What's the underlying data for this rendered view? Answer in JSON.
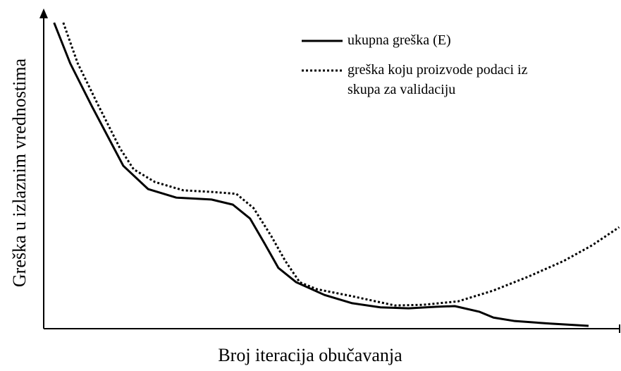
{
  "chart_data": {
    "type": "line",
    "y_label": "Greška u izlaznim vrednostima",
    "x_label": "Broj iteracija obučavanja",
    "xlim": [
      0,
      100
    ],
    "ylim": [
      0,
      100
    ],
    "series": [
      {
        "name": "ukupna greška (E)",
        "color": "#000000",
        "style": "solid",
        "x": [
          1.8,
          4.6,
          8.3,
          12.0,
          13.8,
          18.1,
          23.0,
          29.1,
          32.8,
          35.8,
          38.3,
          40.7,
          43.8,
          48.7,
          53.5,
          58.4,
          63.3,
          68.2,
          71.3,
          75.6,
          78.0,
          81.7,
          87.8,
          94.5
        ],
        "values": [
          96.2,
          83.4,
          70.1,
          57.4,
          51.2,
          43.9,
          41.2,
          40.6,
          39.0,
          34.6,
          26.8,
          19.1,
          14.6,
          10.6,
          8.0,
          6.7,
          6.4,
          6.9,
          7.1,
          5.3,
          3.5,
          2.4,
          1.6,
          0.9
        ]
      },
      {
        "name": "greška koju proizvode podaci iz skupa za validaciju",
        "color": "#000000",
        "style": "dotted",
        "x": [
          3.4,
          5.9,
          9.5,
          13.2,
          15.6,
          19.3,
          24.2,
          29.1,
          33.4,
          36.4,
          39.5,
          41.9,
          44.4,
          47.4,
          53.5,
          60.9,
          65.8,
          71.9,
          78.0,
          84.1,
          90.2,
          95.1,
          99.8
        ],
        "values": [
          96.2,
          83.4,
          70.1,
          56.8,
          50.1,
          46.1,
          43.5,
          43.0,
          42.4,
          37.9,
          29.0,
          21.3,
          14.6,
          12.4,
          10.2,
          7.3,
          7.5,
          8.6,
          12.0,
          16.4,
          21.3,
          26.2,
          31.9
        ]
      }
    ]
  }
}
